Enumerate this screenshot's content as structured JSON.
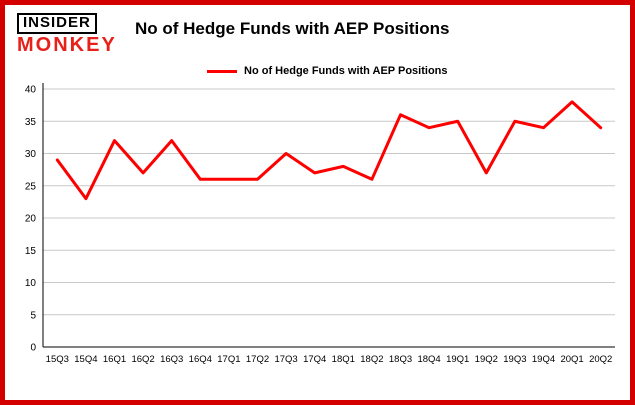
{
  "brand": {
    "line1": "INSIDER",
    "line2": "MONKEY"
  },
  "title": "No of Hedge Funds with AEP Positions",
  "legend": {
    "label": "No of Hedge Funds with AEP Positions"
  },
  "colors": {
    "line": "#ff0000",
    "frame_border": "#d40000",
    "gridline": "#c8c8c8",
    "axis": "#000000",
    "brand_red": "#e8201a"
  },
  "chart_data": {
    "type": "line",
    "title": "No of Hedge Funds with AEP Positions",
    "categories": [
      "15Q3",
      "15Q4",
      "16Q1",
      "16Q2",
      "16Q3",
      "16Q4",
      "17Q1",
      "17Q2",
      "17Q3",
      "17Q4",
      "18Q1",
      "18Q2",
      "18Q3",
      "18Q4",
      "19Q1",
      "19Q2",
      "19Q3",
      "19Q4",
      "20Q1",
      "20Q2"
    ],
    "values": [
      29,
      23,
      32,
      27,
      32,
      26,
      26,
      26,
      30,
      27,
      28,
      26,
      36,
      34,
      35,
      27,
      35,
      34,
      38,
      34
    ],
    "xlabel": "",
    "ylabel": "",
    "ylim": [
      0,
      40
    ],
    "ytick_step": 5,
    "grid": true,
    "legend_position": "top",
    "series_name": "No of Hedge Funds with AEP Positions"
  }
}
